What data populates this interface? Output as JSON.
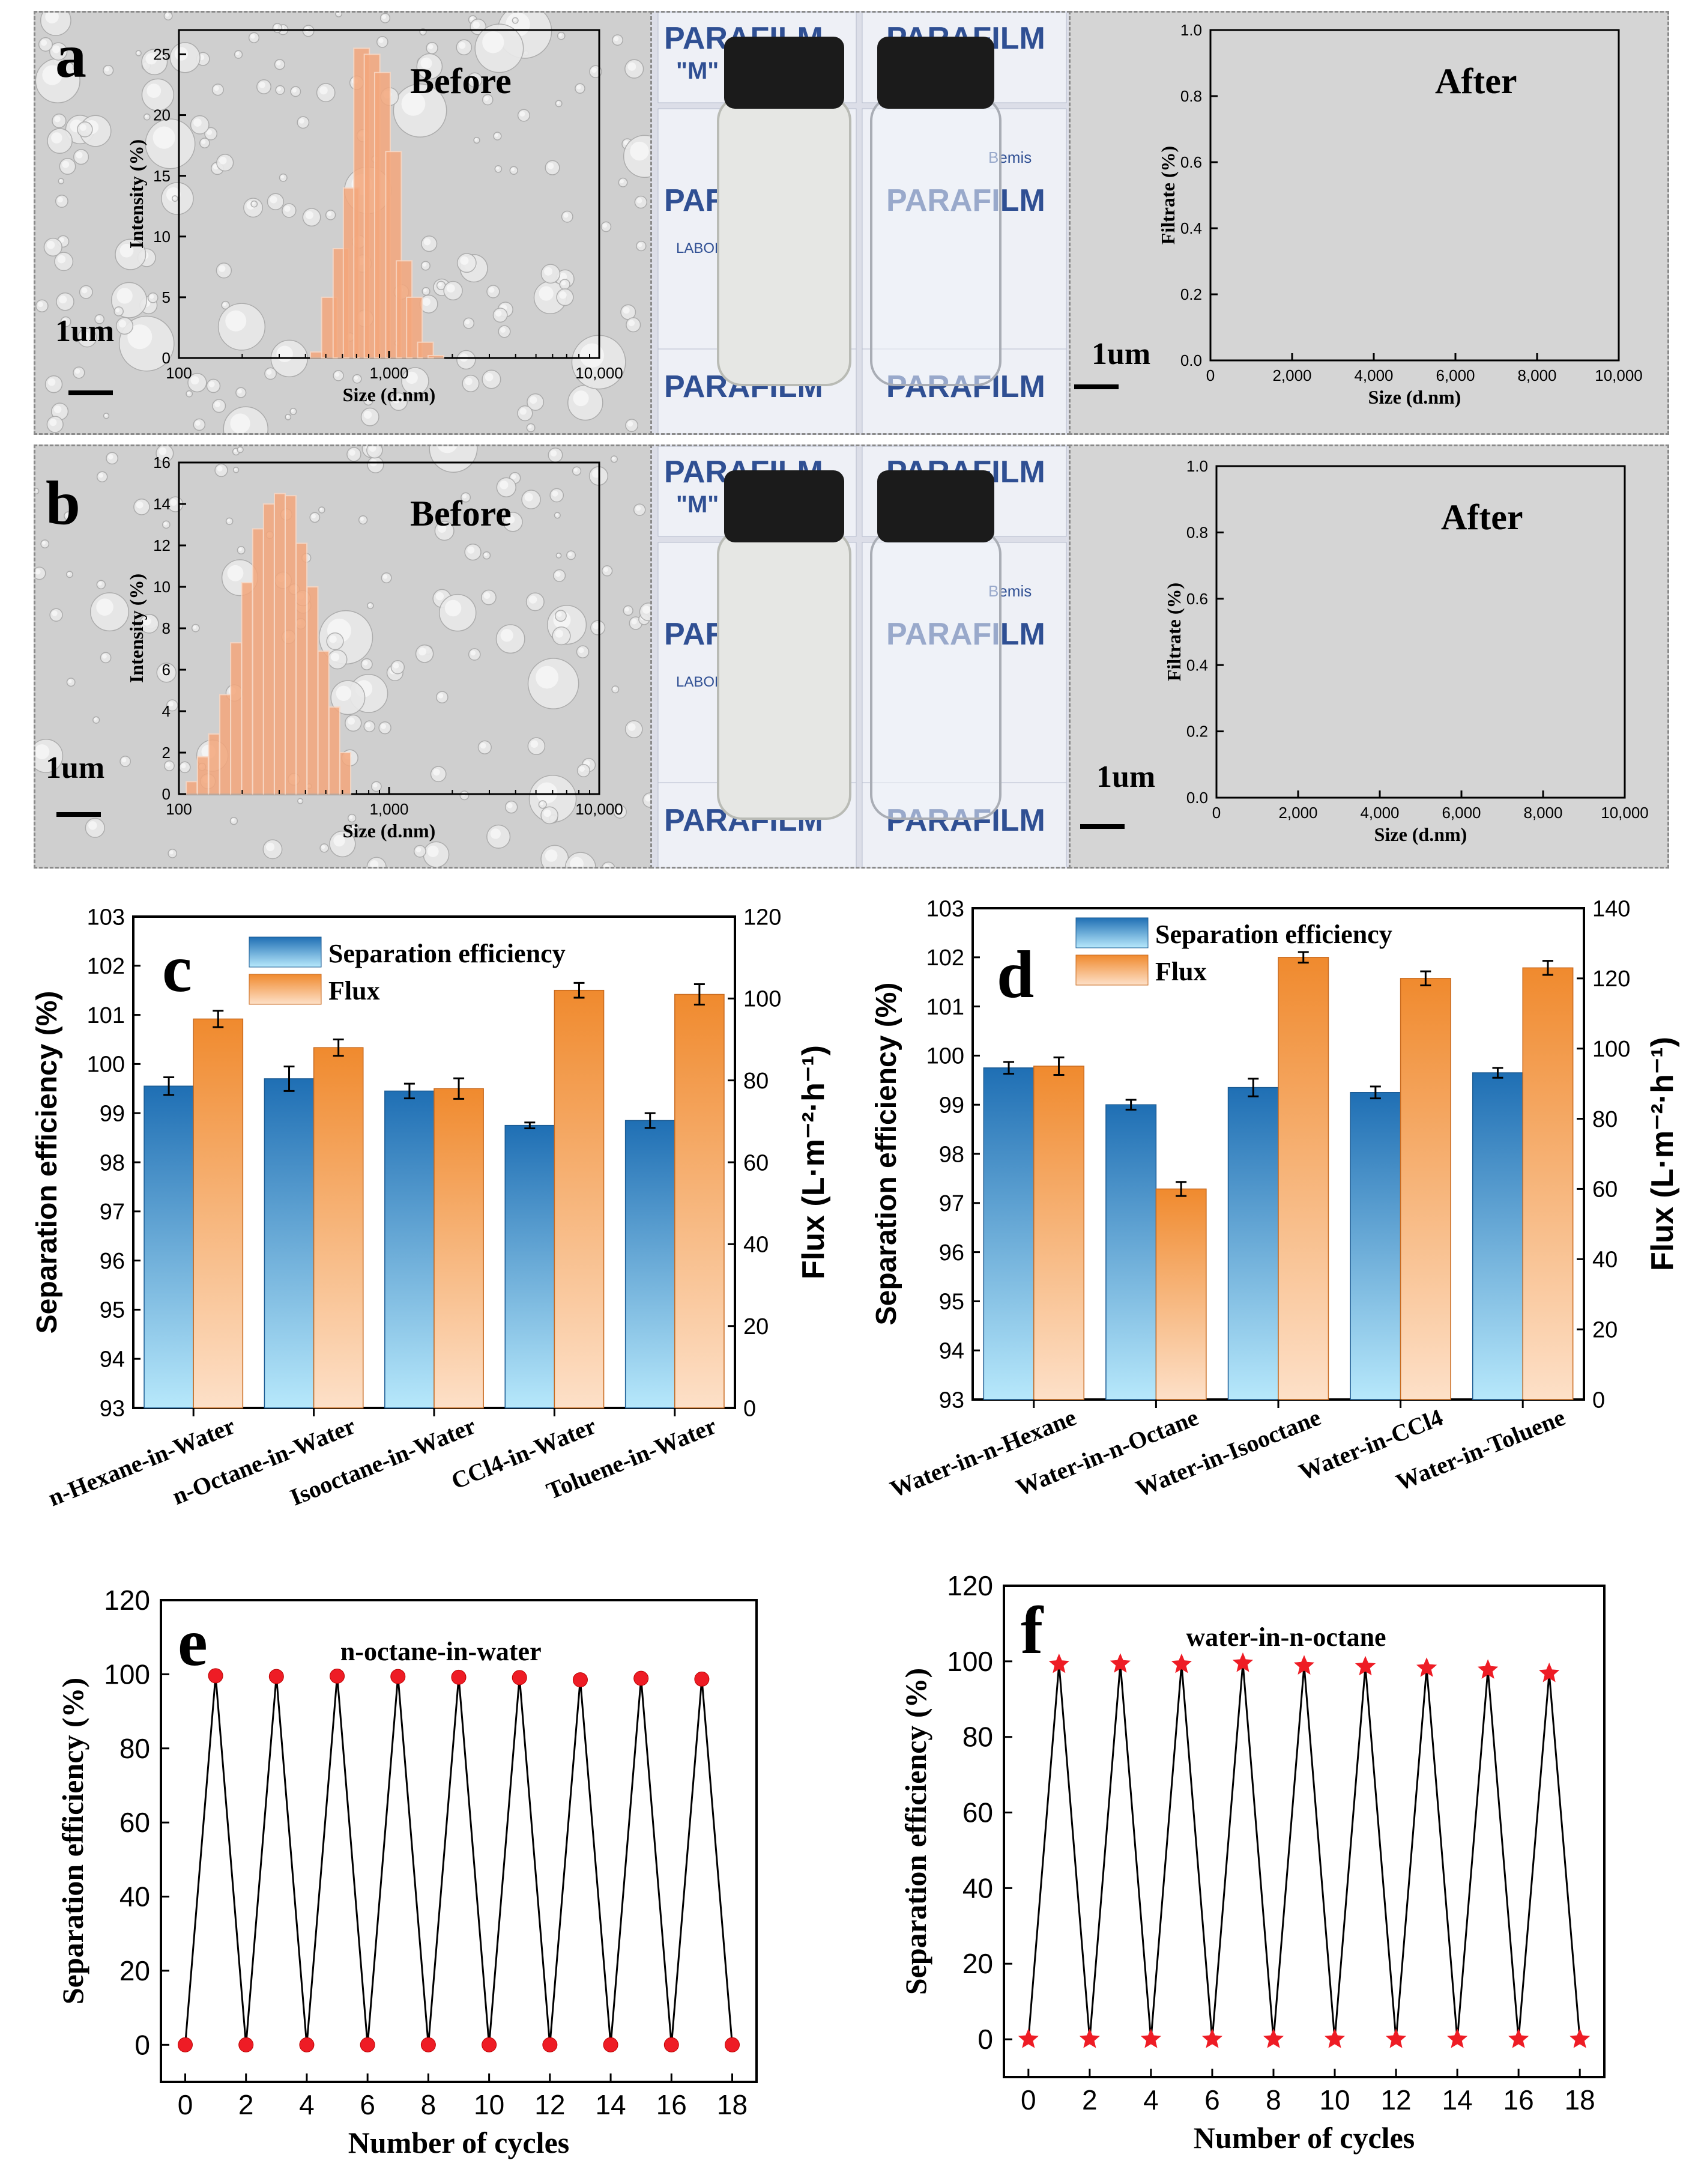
{
  "chart_data": [
    {
      "id": "a_before",
      "panel_label": "a",
      "type": "bar",
      "title": "Before",
      "xlabel": "Size (d.nm)",
      "ylabel": "Intensity (%)",
      "xscale": "log",
      "xlim": [
        100,
        10000
      ],
      "ylim": [
        0,
        27
      ],
      "xticks": [
        "100",
        "1,000",
        "10,000"
      ],
      "yticks": [
        "0",
        "5",
        "10",
        "15",
        "20",
        "25"
      ],
      "x": [
        460,
        520,
        590,
        660,
        740,
        830,
        930,
        1050,
        1180,
        1320,
        1490,
        1670
      ],
      "values": [
        0.5,
        5,
        9,
        14,
        25.5,
        25,
        23.5,
        17,
        8,
        5,
        1.3,
        0.2
      ],
      "scale_bar": "1um",
      "color": "#f4a77c"
    },
    {
      "id": "a_after",
      "panel_label": "",
      "type": "bar",
      "title": "After",
      "xlabel": "Size (d.nm)",
      "ylabel": "Filtrate (%)",
      "xlim": [
        0,
        10000
      ],
      "ylim": [
        0,
        1
      ],
      "xticks": [
        "0",
        "2,000",
        "4,000",
        "6,000",
        "8,000",
        "10,000"
      ],
      "yticks": [
        "0.0",
        "0.2",
        "0.4",
        "0.6",
        "0.8",
        "1.0"
      ],
      "values": [],
      "scale_bar": "1um"
    },
    {
      "id": "b_before",
      "panel_label": "b",
      "type": "bar",
      "title": "Before",
      "xlabel": "Size (d.nm)",
      "ylabel": "Intensity (%)",
      "xscale": "log",
      "xlim": [
        100,
        10000
      ],
      "ylim": [
        0,
        16
      ],
      "xticks": [
        "100",
        "1,000",
        "10,000"
      ],
      "yticks": [
        "0",
        "2",
        "4",
        "6",
        "8",
        "10",
        "12",
        "14",
        "16"
      ],
      "x": [
        115,
        130,
        147,
        166,
        187,
        211,
        238,
        268,
        302,
        340,
        383,
        432,
        487,
        549,
        619
      ],
      "values": [
        0.6,
        1.8,
        2.9,
        4.8,
        7.3,
        10.2,
        12.8,
        14,
        14.5,
        14.4,
        12.1,
        10,
        6.9,
        4.2,
        2
      ],
      "scale_bar": "1um",
      "color": "#f4a77c"
    },
    {
      "id": "b_after",
      "panel_label": "",
      "type": "bar",
      "title": "After",
      "xlabel": "Size (d.nm)",
      "ylabel": "Filtrate (%)",
      "xlim": [
        0,
        10000
      ],
      "ylim": [
        0,
        1
      ],
      "xticks": [
        "0",
        "2,000",
        "4,000",
        "6,000",
        "8,000",
        "10,000"
      ],
      "yticks": [
        "0.0",
        "0.2",
        "0.4",
        "0.6",
        "0.8",
        "1.0"
      ],
      "values": [],
      "scale_bar": "1um"
    },
    {
      "id": "c",
      "panel_label": "c",
      "type": "bar",
      "categories": [
        "n-Hexane-in-Water",
        "n-Octane-in-Water",
        "Isooctane-in-Water",
        "CCl4-in-Water",
        "Toluene-in-Water"
      ],
      "series": [
        {
          "name": "Separation efficiency",
          "axis": "left",
          "values": [
            99.55,
            99.7,
            99.45,
            98.75,
            98.85
          ],
          "errors": [
            0.18,
            0.25,
            0.15,
            0.06,
            0.15
          ]
        },
        {
          "name": "Flux",
          "axis": "right",
          "values": [
            95,
            88,
            78,
            102,
            101
          ],
          "errors": [
            2,
            2,
            2.5,
            1.8,
            2.5
          ]
        }
      ],
      "ylabel": "Separation efficiency (%)",
      "y2label": "Flux (L·m⁻²·h⁻¹)",
      "ylim": [
        93,
        103
      ],
      "y2lim": [
        0,
        120
      ],
      "yticks": [
        "93",
        "94",
        "95",
        "96",
        "97",
        "98",
        "99",
        "100",
        "101",
        "102",
        "103"
      ],
      "y2ticks": [
        "0",
        "20",
        "40",
        "60",
        "80",
        "100",
        "120"
      ]
    },
    {
      "id": "d",
      "panel_label": "d",
      "type": "bar",
      "categories": [
        "Water-in-n-Hexane",
        "Water-in-n-Octane",
        "Water-in-Isooctane",
        "Water-in-CCl4",
        "Water-in-Toluene"
      ],
      "series": [
        {
          "name": "Separation efficiency",
          "axis": "left",
          "values": [
            99.75,
            99.0,
            99.35,
            99.25,
            99.65
          ],
          "errors": [
            0.12,
            0.1,
            0.18,
            0.12,
            0.1
          ]
        },
        {
          "name": "Flux",
          "axis": "right",
          "values": [
            95,
            60,
            126,
            120,
            123
          ],
          "errors": [
            2.5,
            2,
            1.5,
            2,
            2
          ]
        }
      ],
      "ylabel": "Separation efficiency (%)",
      "y2label": "Flux (L·m⁻²·h⁻¹)",
      "ylim": [
        93,
        103
      ],
      "y2lim": [
        0,
        140
      ],
      "yticks": [
        "93",
        "94",
        "95",
        "96",
        "97",
        "98",
        "99",
        "100",
        "101",
        "102",
        "103"
      ],
      "y2ticks": [
        "0",
        "20",
        "40",
        "60",
        "80",
        "100",
        "120",
        "140"
      ]
    },
    {
      "id": "e",
      "panel_label": "e",
      "type": "line",
      "title": "n-octane-in-water",
      "xlabel": "Number of cycles",
      "ylabel": "Separation efficiency (%)",
      "xlim": [
        -0.8,
        18.8
      ],
      "ylim": [
        -10,
        120
      ],
      "xticks": [
        "0",
        "2",
        "4",
        "6",
        "8",
        "10",
        "12",
        "14",
        "16",
        "18"
      ],
      "yticks": [
        "0",
        "20",
        "40",
        "60",
        "80",
        "100",
        "120"
      ],
      "x": [
        0,
        1,
        2,
        3,
        4,
        5,
        6,
        7,
        8,
        9,
        10,
        11,
        12,
        13,
        14,
        15,
        16,
        17,
        18
      ],
      "y": [
        0,
        99.6,
        0,
        99.4,
        0,
        99.5,
        0,
        99.4,
        0,
        99.2,
        0,
        99.1,
        0,
        98.5,
        0,
        98.9,
        0,
        98.7,
        0
      ],
      "marker": "circle",
      "color": "#ee1c25"
    },
    {
      "id": "f",
      "panel_label": "f",
      "type": "line",
      "title": "water-in-n-octane",
      "xlabel": "Number of cycles",
      "ylabel": "Separation efficiency (%)",
      "xlim": [
        -0.8,
        18.8
      ],
      "ylim": [
        -10,
        120
      ],
      "xticks": [
        "0",
        "2",
        "4",
        "6",
        "8",
        "10",
        "12",
        "14",
        "16",
        "18"
      ],
      "yticks": [
        "0",
        "20",
        "40",
        "60",
        "80",
        "100",
        "120"
      ],
      "x": [
        0,
        1,
        2,
        3,
        4,
        5,
        6,
        7,
        8,
        9,
        10,
        11,
        12,
        13,
        14,
        15,
        16,
        17,
        18
      ],
      "y": [
        0,
        99.2,
        0,
        99.3,
        0,
        99.2,
        0,
        99.5,
        0,
        98.8,
        0,
        98.6,
        0,
        98.2,
        0,
        97.7,
        0,
        96.8,
        0
      ],
      "marker": "star",
      "color": "#ee1c25"
    }
  ],
  "photos": {
    "vial_label_text": [
      "PARAFILM",
      "\"M\"",
      "PARAFILM",
      "\"M\"",
      "PARAFILM",
      "LABORATORY FILM",
      "Bemis"
    ]
  }
}
